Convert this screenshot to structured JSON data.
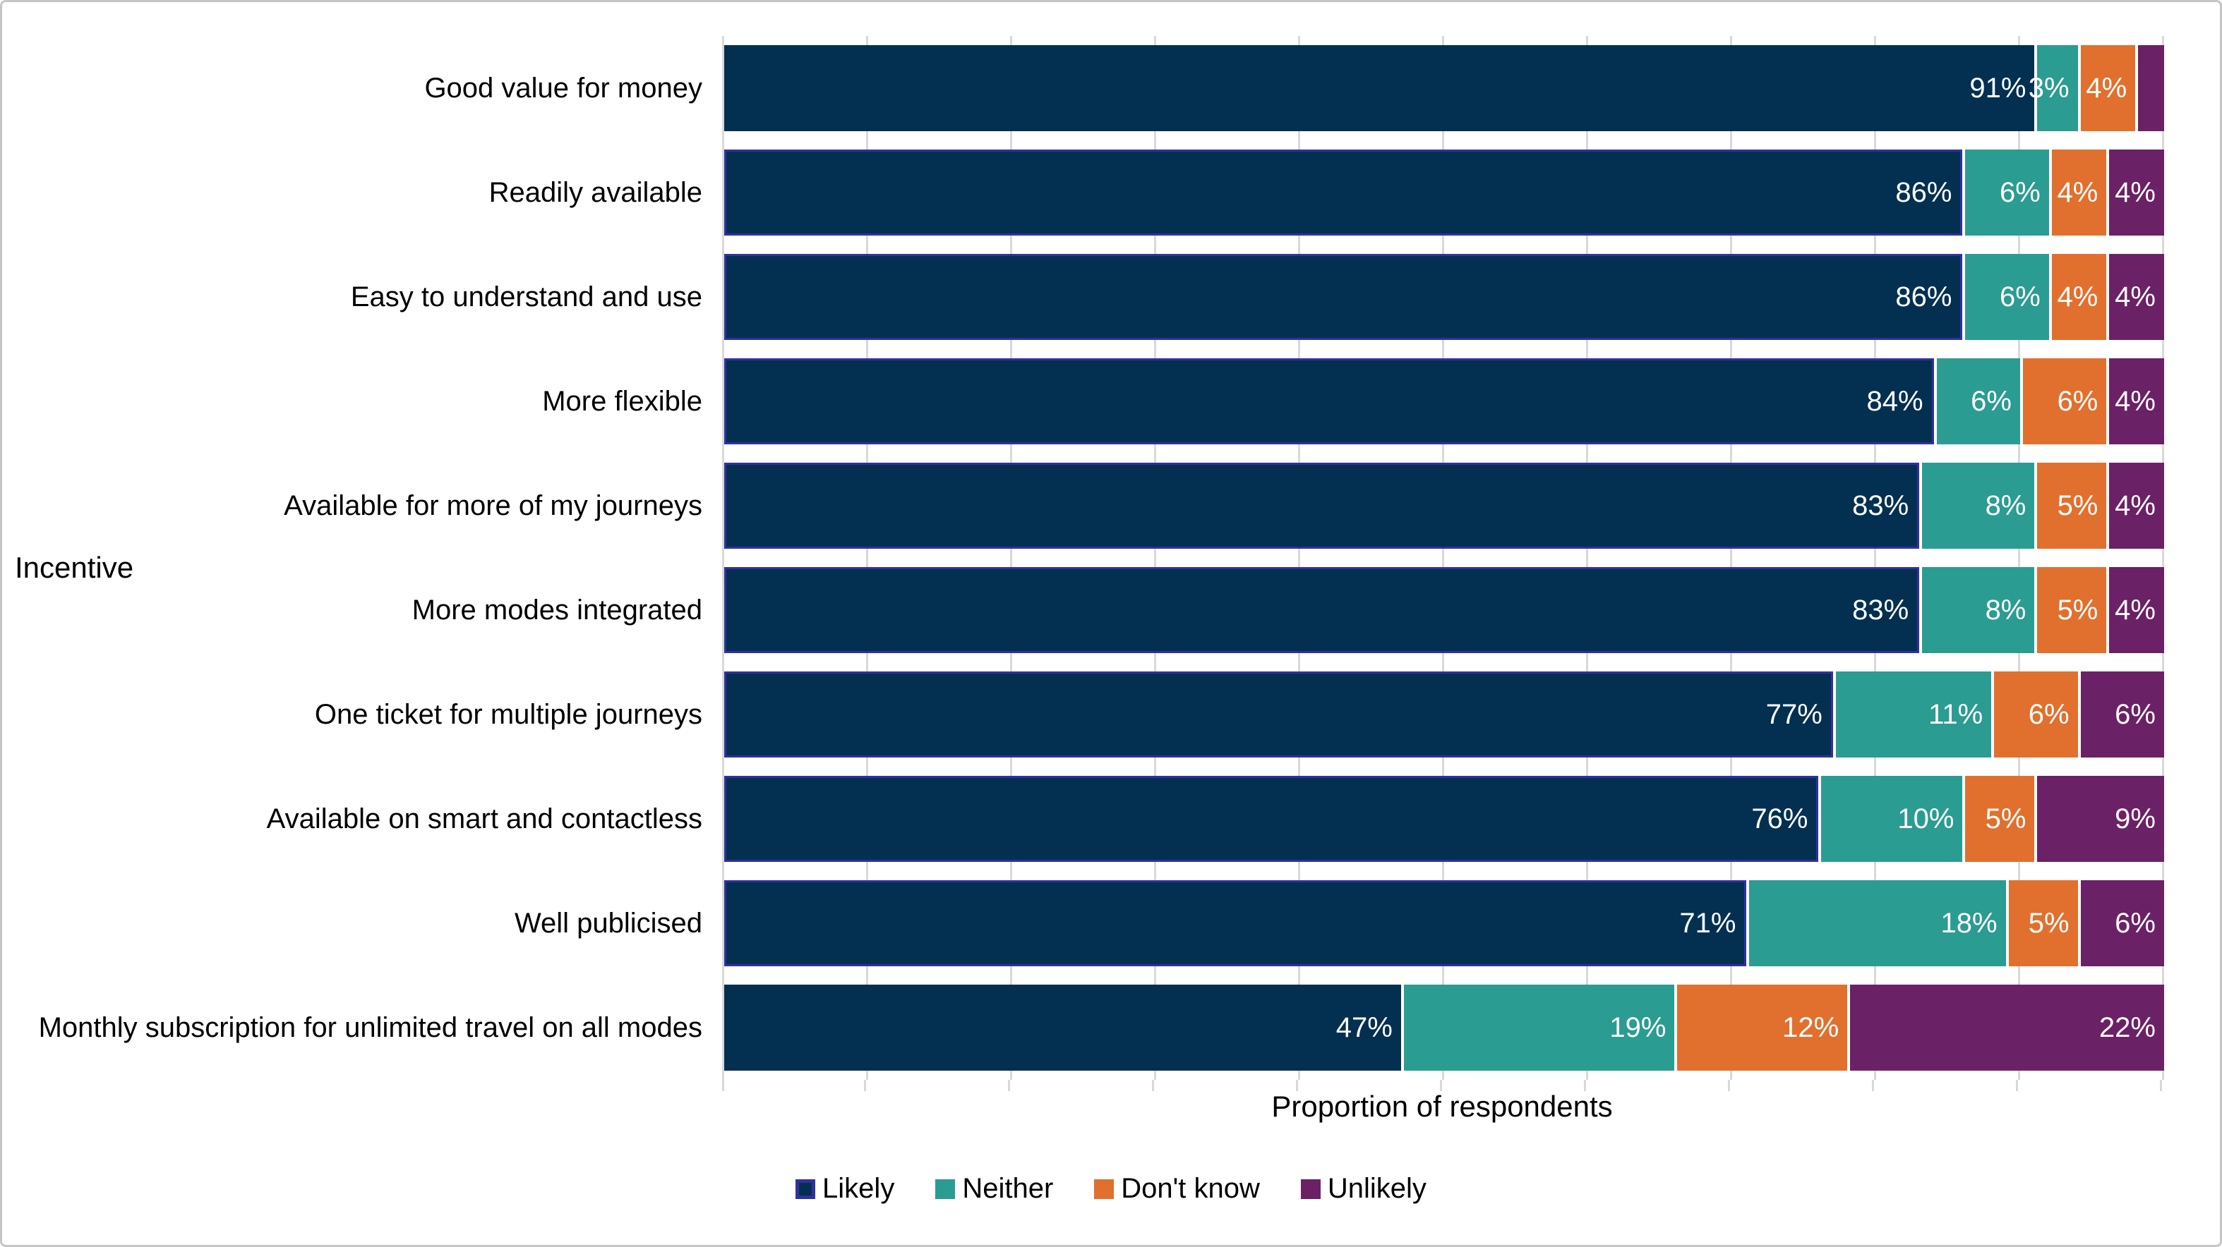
{
  "chart_data": {
    "type": "bar",
    "stacked": true,
    "orientation": "horizontal",
    "title": "",
    "xlabel": "Proportion of respondents",
    "ylabel": "Incentive",
    "xlim": [
      0,
      100
    ],
    "gridlines": {
      "axis": "x",
      "interval_pct": 10,
      "visible": true
    },
    "x_tick_labels_visible": false,
    "series_names": [
      "Likely",
      "Neither",
      "Don't know",
      "Unlikely"
    ],
    "legend": {
      "position": "bottom-center",
      "entries": [
        {
          "label": "Likely",
          "color": "#033050",
          "outline": "#3230a0"
        },
        {
          "label": "Neither",
          "color": "#2b9c92"
        },
        {
          "label": "Don't know",
          "color": "#e1702e"
        },
        {
          "label": "Unlikely",
          "color": "#6b2165"
        }
      ]
    },
    "rows": [
      {
        "category": "Good value for money",
        "values": [
          91,
          3,
          4,
          2
        ],
        "labels": [
          "91%",
          "3%",
          "4%",
          ""
        ],
        "selected_outline": false
      },
      {
        "category": "Readily available",
        "values": [
          86,
          6,
          4,
          4
        ],
        "labels": [
          "86%",
          "6%",
          "4%",
          "4%"
        ],
        "selected_outline": true
      },
      {
        "category": "Easy to understand and use",
        "values": [
          86,
          6,
          4,
          4
        ],
        "labels": [
          "86%",
          "6%",
          "4%",
          "4%"
        ],
        "selected_outline": true
      },
      {
        "category": "More flexible",
        "values": [
          84,
          6,
          6,
          4
        ],
        "labels": [
          "84%",
          "6%",
          "6%",
          "4%"
        ],
        "selected_outline": true
      },
      {
        "category": "Available for more of my journeys",
        "values": [
          83,
          8,
          5,
          4
        ],
        "labels": [
          "83%",
          "8%",
          "5%",
          "4%"
        ],
        "selected_outline": true
      },
      {
        "category": "More modes integrated",
        "values": [
          83,
          8,
          5,
          4
        ],
        "labels": [
          "83%",
          "8%",
          "5%",
          "4%"
        ],
        "selected_outline": true
      },
      {
        "category": "One ticket for multiple journeys",
        "values": [
          77,
          11,
          6,
          6
        ],
        "labels": [
          "77%",
          "11%",
          "6%",
          "6%"
        ],
        "selected_outline": true
      },
      {
        "category": "Available on smart and contactless",
        "values": [
          76,
          10,
          5,
          9
        ],
        "labels": [
          "76%",
          "10%",
          "5%",
          "9%"
        ],
        "selected_outline": true
      },
      {
        "category": "Well publicised",
        "values": [
          71,
          18,
          5,
          6
        ],
        "labels": [
          "71%",
          "18%",
          "5%",
          "6%"
        ],
        "selected_outline": true
      },
      {
        "category": "Monthly subscription for unlimited travel on all modes",
        "values": [
          47,
          19,
          12,
          22
        ],
        "labels": [
          "47%",
          "19%",
          "12%",
          "22%"
        ],
        "selected_outline": false
      }
    ]
  },
  "colors": {
    "likely": "#033050",
    "neither": "#2b9c92",
    "dont_know": "#e1702e",
    "unlikely": "#6b2165",
    "selection_outline": "#3230a0",
    "gridline": "#d9d9d9",
    "bar_label_text": "#ffffff",
    "axis_text": "#000000",
    "background": "#ffffff",
    "chart_border": "#c5c5c5"
  }
}
